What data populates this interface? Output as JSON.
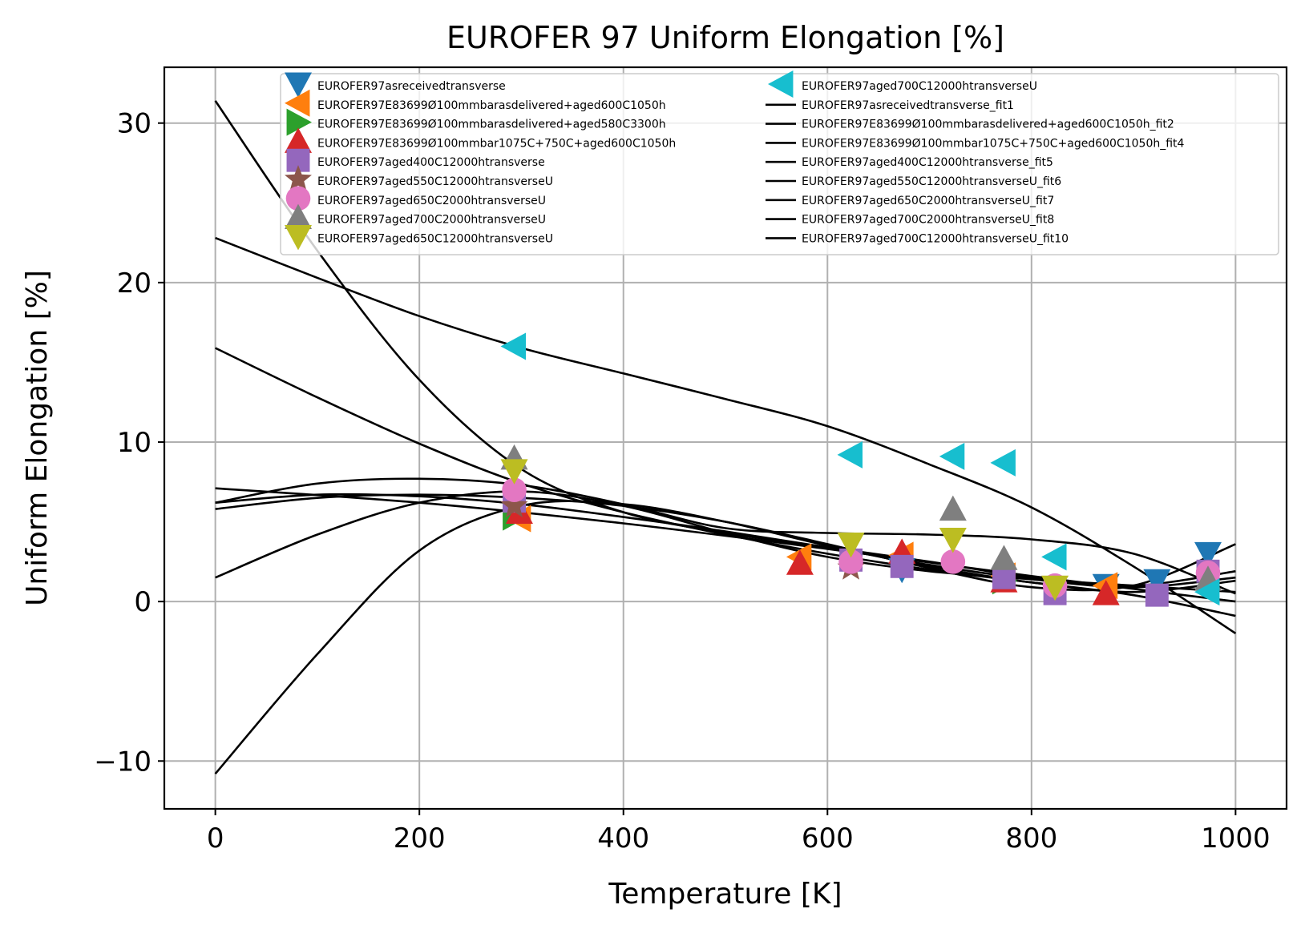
{
  "chart_data": {
    "type": "scatter",
    "title": "EUROFER 97 Uniform Elongation [%]",
    "xlabel": "Temperature [K]",
    "ylabel": "Uniform Elongation [%]",
    "xlim": [
      -50,
      1050
    ],
    "ylim": [
      -13,
      33.5
    ],
    "xticks": [
      0,
      200,
      400,
      600,
      800,
      1000
    ],
    "yticks": [
      -10,
      0,
      10,
      20,
      30
    ],
    "xtick_labels": [
      "0",
      "200",
      "400",
      "600",
      "800",
      "1000"
    ],
    "ytick_labels": [
      "−10",
      "0",
      "10",
      "20",
      "30"
    ],
    "grid": true,
    "legend_placement": "top-center",
    "series": [
      {
        "name": "EUROFER97asreceivedtransverse",
        "marker": "triangle-down",
        "color": "#1f77b4",
        "x": [
          673,
          873,
          923,
          973
        ],
        "y": [
          2.0,
          1.0,
          1.3,
          3.0
        ]
      },
      {
        "name": "EUROFER97E83699Ø100mmbarasdelivered+aged600C1050h",
        "marker": "triangle-left",
        "color": "#ff7f0e",
        "x": [
          298,
          573,
          673,
          773,
          873
        ],
        "y": [
          5.2,
          2.8,
          2.9,
          1.6,
          1.0
        ]
      },
      {
        "name": "EUROFER97E83699Ø100mmbarasdelivered+aged580C3300h",
        "marker": "triangle-right",
        "color": "#2ca02c",
        "x": [
          293,
          773
        ],
        "y": [
          5.3,
          1.3
        ]
      },
      {
        "name": "EUROFER97E83699Ø100mmbar1075C+750C+aged600C1050h",
        "marker": "triangle-up",
        "color": "#d62728",
        "x": [
          298,
          573,
          673,
          773,
          873
        ],
        "y": [
          5.6,
          2.4,
          3.1,
          1.3,
          0.5
        ]
      },
      {
        "name": "EUROFER97aged400C12000htransverse",
        "marker": "square",
        "color": "#9467bd",
        "x": [
          293,
          623,
          673,
          773,
          823,
          923,
          973
        ],
        "y": [
          6.3,
          2.6,
          2.2,
          1.5,
          0.5,
          0.4,
          1.9
        ]
      },
      {
        "name": "EUROFER97aged550C12000htransverseU",
        "marker": "star",
        "color": "#8c564b",
        "x": [
          293,
          623
        ],
        "y": [
          6.0,
          2.1
        ]
      },
      {
        "name": "EUROFER97aged650C2000htransverseU",
        "marker": "circle",
        "color": "#e377c2",
        "x": [
          293,
          623,
          723,
          823,
          973
        ],
        "y": [
          7.0,
          2.5,
          2.5,
          1.0,
          1.8
        ]
      },
      {
        "name": "EUROFER97aged700C2000htransverseU",
        "marker": "triangle-up",
        "color": "#7f7f7f",
        "x": [
          293,
          723,
          773,
          973
        ],
        "y": [
          9.0,
          5.8,
          2.7,
          1.4
        ]
      },
      {
        "name": "EUROFER97aged650C12000htransverseU",
        "marker": "triangle-down",
        "color": "#bcbd22",
        "x": [
          293,
          623,
          723,
          823
        ],
        "y": [
          8.2,
          3.6,
          3.9,
          0.9
        ]
      },
      {
        "name": "EUROFER97aged700C12000htransverseU",
        "marker": "triangle-left",
        "color": "#17becf",
        "x": [
          293,
          623,
          723,
          773,
          823,
          973
        ],
        "y": [
          16.0,
          9.2,
          9.1,
          8.7,
          2.8,
          0.6
        ]
      }
    ],
    "fits": [
      {
        "name": "EUROFER97asreceivedtransverse_fit1",
        "color": "#000000",
        "x": [
          0,
          200,
          400,
          600,
          800,
          1000
        ],
        "y": [
          7.1,
          6.2,
          4.9,
          3.3,
          1.6,
          0.0
        ]
      },
      {
        "name": "EUROFER97E83699Ø100mmbarasdelivered+aged600C1050h_fit2",
        "color": "#000000",
        "x": [
          0,
          100,
          200,
          300,
          400,
          500,
          600,
          700,
          800,
          900,
          1000
        ],
        "y": [
          15.9,
          12.8,
          9.9,
          7.4,
          5.6,
          4.2,
          3.0,
          2.0,
          1.2,
          0.4,
          -0.9
        ]
      },
      {
        "name": "EUROFER97E83699Ø100mmbar1075C+750C+aged600C1050h_fit4",
        "color": "#000000",
        "x": [
          0,
          100,
          200,
          300,
          400,
          500,
          600,
          700,
          800,
          900,
          1000
        ],
        "y": [
          6.2,
          6.7,
          6.6,
          6.1,
          5.3,
          4.4,
          3.4,
          2.3,
          1.4,
          0.9,
          1.5
        ]
      },
      {
        "name": "EUROFER97aged400C12000htransverse_fit5",
        "color": "#000000",
        "x": [
          0,
          100,
          200,
          300,
          400,
          500,
          600,
          700,
          800,
          900,
          1000
        ],
        "y": [
          5.8,
          6.5,
          6.7,
          6.5,
          6.0,
          5.0,
          3.6,
          2.1,
          0.9,
          1.0,
          3.6
        ]
      },
      {
        "name": "EUROFER97aged550C12000htransverseU_fit6",
        "color": "#000000",
        "x": [
          0,
          100,
          200,
          300,
          400,
          500,
          600,
          700,
          800,
          900,
          1000
        ],
        "y": [
          1.5,
          4.2,
          6.2,
          6.9,
          6.0,
          4.3,
          2.8,
          1.9,
          1.4,
          1.0,
          0.6
        ]
      },
      {
        "name": "EUROFER97aged650C2000htransverseU_fit7",
        "color": "#000000",
        "x": [
          0,
          100,
          200,
          300,
          400,
          500,
          600,
          700,
          800,
          900,
          1000
        ],
        "y": [
          31.4,
          22.0,
          13.9,
          8.3,
          5.6,
          4.3,
          3.4,
          2.5,
          1.5,
          1.0,
          1.9
        ]
      },
      {
        "name": "EUROFER97aged700C2000htransverseU_fit8",
        "color": "#000000",
        "x": [
          0,
          100,
          200,
          300,
          400,
          500,
          600,
          700,
          800,
          900,
          1000
        ],
        "y": [
          -10.8,
          -3.3,
          3.2,
          6.0,
          6.1,
          5.0,
          3.5,
          2.2,
          1.2,
          0.6,
          1.3
        ]
      },
      {
        "name": "EUROFER97aged700C12000htransverseU_fit10",
        "color": "#000000",
        "x": [
          0,
          100,
          200,
          300,
          400,
          500,
          600,
          700,
          800,
          900,
          1000
        ],
        "y": [
          22.8,
          20.3,
          17.9,
          15.9,
          14.3,
          12.7,
          11.0,
          8.6,
          5.9,
          2.2,
          -2.0
        ]
      },
      {
        "name": "",
        "color": "#000000",
        "x": [
          0,
          100,
          200,
          300,
          400,
          500,
          600,
          700,
          800,
          900,
          1000
        ],
        "y": [
          6.2,
          7.4,
          7.7,
          7.3,
          6.1,
          4.6,
          4.3,
          4.2,
          3.9,
          3.0,
          0.5
        ]
      }
    ]
  }
}
